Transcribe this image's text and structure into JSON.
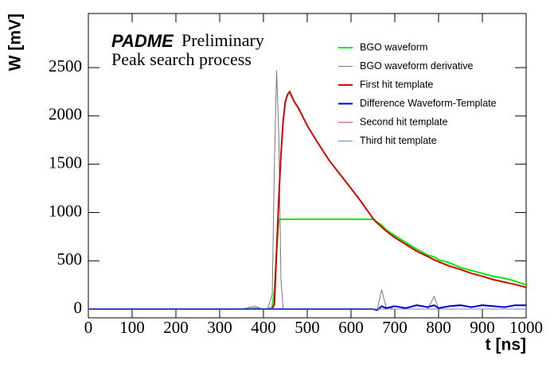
{
  "chart_data": {
    "type": "line",
    "annotations": [
      "PADME",
      "Preliminary",
      "Peak search process"
    ],
    "xlabel": "t [ns]",
    "ylabel": "W [mV]",
    "x": [
      0,
      50,
      100,
      150,
      200,
      250,
      300,
      350,
      380,
      400,
      410,
      420,
      425,
      430,
      435,
      440,
      445,
      450,
      455,
      460,
      470,
      480,
      500,
      520,
      550,
      600,
      625,
      650,
      660,
      670,
      680,
      700,
      725,
      750,
      775,
      790,
      800,
      825,
      850,
      875,
      900,
      925,
      950,
      975,
      1000
    ],
    "series": [
      {
        "name": "BGO waveform",
        "color": "#00ee00",
        "width": 2,
        "values": [
          0,
          0,
          0,
          0,
          0,
          0,
          0,
          0,
          10,
          0,
          0,
          20,
          200,
          600,
          930,
          930,
          930,
          930,
          930,
          930,
          930,
          930,
          930,
          930,
          930,
          930,
          930,
          930,
          900,
          870,
          820,
          760,
          690,
          620,
          560,
          540,
          510,
          480,
          430,
          400,
          370,
          340,
          320,
          290,
          250
        ]
      },
      {
        "name": "BGO waveform derivative",
        "color": "#777777",
        "width": 1,
        "values": [
          0,
          0,
          0,
          0,
          0,
          0,
          0,
          0,
          30,
          0,
          10,
          150,
          1500,
          2470,
          1800,
          300,
          0,
          0,
          0,
          0,
          0,
          0,
          0,
          0,
          0,
          0,
          0,
          0,
          0,
          200,
          20,
          0,
          0,
          0,
          0,
          130,
          0,
          0,
          0,
          0,
          0,
          0,
          0,
          0,
          0
        ]
      },
      {
        "name": "First hit template",
        "color": "#dd0000",
        "width": 2,
        "values": [
          0,
          0,
          0,
          0,
          0,
          0,
          0,
          0,
          0,
          0,
          0,
          0,
          50,
          600,
          1150,
          1600,
          1950,
          2150,
          2220,
          2250,
          2150,
          2080,
          1900,
          1750,
          1540,
          1250,
          1100,
          940,
          890,
          850,
          810,
          740,
          670,
          600,
          545,
          510,
          490,
          445,
          410,
          370,
          340,
          305,
          280,
          255,
          225
        ]
      },
      {
        "name": "Difference Waveform-Template",
        "color": "#0000cc",
        "width": 2,
        "values": [
          0,
          0,
          0,
          0,
          0,
          0,
          0,
          0,
          0,
          0,
          0,
          0,
          0,
          0,
          0,
          0,
          0,
          0,
          0,
          0,
          0,
          0,
          0,
          0,
          0,
          0,
          0,
          0,
          -10,
          30,
          10,
          30,
          10,
          40,
          20,
          40,
          10,
          30,
          40,
          20,
          40,
          30,
          20,
          40,
          40
        ]
      },
      {
        "name": "Second hit template",
        "color": "#cc3333",
        "width": 1,
        "values": [
          0,
          0,
          0,
          0,
          0,
          0,
          0,
          0,
          0,
          0,
          0,
          0,
          0,
          0,
          0,
          0,
          0,
          0,
          0,
          0,
          0,
          0,
          0,
          0,
          0,
          0,
          0,
          0,
          0,
          0,
          0,
          0,
          0,
          0,
          0,
          0,
          0,
          0,
          0,
          0,
          0,
          0,
          0,
          0,
          0
        ]
      },
      {
        "name": "Third hit template",
        "color": "#6688dd",
        "width": 1,
        "values": [
          0,
          0,
          0,
          0,
          0,
          0,
          0,
          0,
          0,
          0,
          0,
          0,
          0,
          0,
          0,
          0,
          0,
          0,
          0,
          0,
          0,
          0,
          0,
          0,
          0,
          0,
          0,
          0,
          0,
          0,
          0,
          0,
          0,
          0,
          0,
          0,
          0,
          0,
          0,
          0,
          0,
          0,
          0,
          0,
          0
        ]
      }
    ],
    "xlim": [
      0,
      1000
    ],
    "xticks": [
      0,
      100,
      200,
      300,
      400,
      500,
      600,
      700,
      800,
      900,
      1000
    ],
    "ylim": [
      -90,
      3060
    ],
    "yticks": [
      0,
      500,
      1000,
      1500,
      2000,
      2500
    ],
    "legend": "top-right"
  }
}
